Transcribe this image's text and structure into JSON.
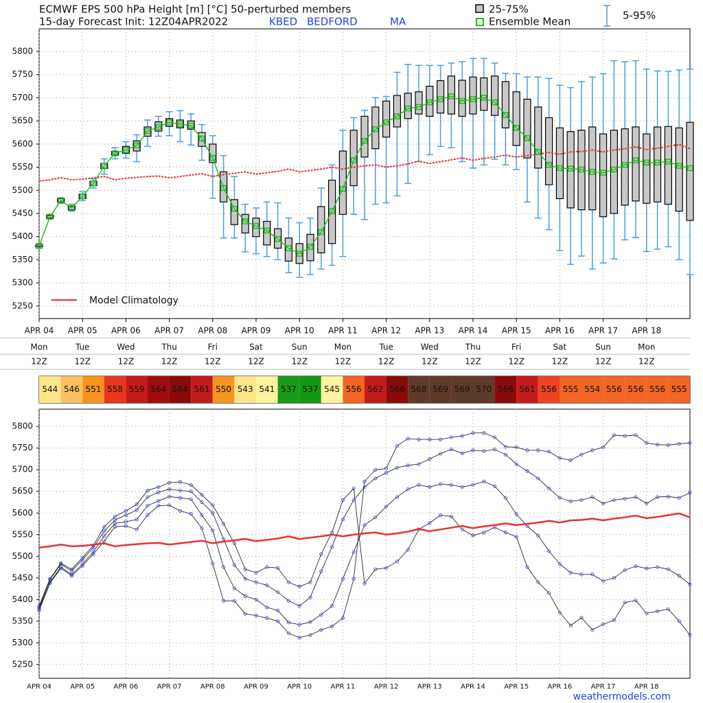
{
  "chart_data": [
    {
      "type": "box",
      "title": "ECMWF EPS 500 hPa Height [m] [°C]  50-perturbed members",
      "subtitle": "15-day Forecast Init: 12Z04APR2022",
      "station": "KBED",
      "city": "BEDFORD",
      "state": "MA",
      "categories": [
        "APR 04",
        null,
        null,
        null,
        "APR 05",
        null,
        null,
        null,
        "APR 06",
        null,
        null,
        null,
        "APR 07",
        null,
        null,
        null,
        "APR 08",
        null,
        null,
        null,
        "APR 09",
        null,
        null,
        null,
        "APR 10",
        null,
        null,
        null,
        "APR 11",
        null,
        null,
        null,
        "APR 12",
        null,
        null,
        null,
        "APR 13",
        null,
        null,
        null,
        "APR 14",
        null,
        null,
        null,
        "APR 15",
        null,
        null,
        null,
        "APR 16",
        null,
        null,
        null,
        "APR 17",
        null,
        null,
        null,
        "APR 18",
        null,
        null,
        null,
        null
      ],
      "weekdays": [
        "Mon",
        "Tue",
        "Wed",
        "Thu",
        "Fri",
        "Sat",
        "Sun",
        "Mon",
        "Tue",
        "Wed",
        "Thu",
        "Fri",
        "Sat",
        "Sun",
        "Mon"
      ],
      "hours": [
        "12Z",
        "12Z",
        "12Z",
        "12Z",
        "12Z",
        "12Z",
        "12Z",
        "12Z",
        "12Z",
        "12Z",
        "12Z",
        "12Z",
        "12Z",
        "12Z",
        "12Z"
      ],
      "ylim": [
        5223,
        5849
      ],
      "yticks": [
        5250,
        5300,
        5350,
        5400,
        5450,
        5500,
        5550,
        5600,
        5650,
        5700,
        5750,
        5800
      ],
      "grid": true,
      "box": {
        "name": "25-75%",
        "color": "#c8c8c8",
        "q1": [
          5378,
          5440,
          5475,
          5458,
          5482,
          5510,
          5547,
          5576,
          5580,
          5585,
          5617,
          5628,
          5638,
          5635,
          5632,
          5595,
          5560,
          5475,
          5426,
          5408,
          5400,
          5382,
          5375,
          5347,
          5342,
          5348,
          5365,
          5385,
          5448,
          5510,
          5572,
          5590,
          5615,
          5637,
          5655,
          5665,
          5660,
          5667,
          5665,
          5660,
          5665,
          5673,
          5662,
          5635,
          5597,
          5570,
          5548,
          5512,
          5482,
          5462,
          5458,
          5458,
          5443,
          5450,
          5468,
          5477,
          5472,
          5475,
          5470,
          5455,
          5435
        ],
        "q3": [
          5382,
          5446,
          5482,
          5466,
          5492,
          5520,
          5558,
          5584,
          5595,
          5607,
          5637,
          5648,
          5655,
          5652,
          5650,
          5625,
          5600,
          5540,
          5480,
          5448,
          5440,
          5433,
          5417,
          5397,
          5385,
          5405,
          5465,
          5522,
          5585,
          5630,
          5660,
          5680,
          5693,
          5705,
          5710,
          5713,
          5725,
          5737,
          5747,
          5738,
          5745,
          5743,
          5747,
          5735,
          5713,
          5697,
          5680,
          5657,
          5635,
          5627,
          5630,
          5637,
          5622,
          5630,
          5633,
          5637,
          5622,
          5637,
          5638,
          5635,
          5647
        ]
      },
      "whiskers": {
        "name": "5-95%",
        "color": "#4a9de0",
        "low": [
          5375,
          5438,
          5472,
          5455,
          5478,
          5505,
          5535,
          5568,
          5570,
          5562,
          5595,
          5617,
          5618,
          5605,
          5598,
          5565,
          5483,
          5397,
          5397,
          5367,
          5363,
          5357,
          5350,
          5322,
          5312,
          5318,
          5330,
          5338,
          5357,
          5448,
          5437,
          5470,
          5473,
          5488,
          5515,
          5562,
          5577,
          5595,
          5592,
          5562,
          5548,
          5555,
          5567,
          5555,
          5545,
          5475,
          5440,
          5415,
          5370,
          5340,
          5358,
          5330,
          5343,
          5352,
          5393,
          5398,
          5368,
          5373,
          5378,
          5350,
          5318
        ],
        "high": [
          5385,
          5448,
          5484,
          5470,
          5497,
          5525,
          5568,
          5592,
          5605,
          5620,
          5652,
          5660,
          5670,
          5672,
          5665,
          5642,
          5618,
          5575,
          5530,
          5470,
          5462,
          5475,
          5473,
          5440,
          5430,
          5440,
          5505,
          5555,
          5630,
          5657,
          5673,
          5700,
          5703,
          5755,
          5772,
          5770,
          5770,
          5770,
          5775,
          5778,
          5785,
          5785,
          5775,
          5753,
          5752,
          5745,
          5745,
          5742,
          5727,
          5722,
          5735,
          5745,
          5752,
          5780,
          5778,
          5780,
          5762,
          5758,
          5757,
          5760,
          5762
        ]
      },
      "series": [
        {
          "name": "Model Climatology",
          "color": "#e83030",
          "values": [
            5520,
            5523,
            5527,
            5523,
            5524,
            5527,
            5530,
            5523,
            5526,
            5528,
            5530,
            5531,
            5527,
            5530,
            5533,
            5536,
            5530,
            5534,
            5537,
            5540,
            5535,
            5538,
            5541,
            5546,
            5540,
            5543,
            5546,
            5550,
            5546,
            5550,
            5553,
            5555,
            5550,
            5553,
            5557,
            5563,
            5558,
            5562,
            5566,
            5570,
            5565,
            5569,
            5572,
            5576,
            5572,
            5575,
            5578,
            5582,
            5578,
            5583,
            5584,
            5587,
            5583,
            5587,
            5590,
            5594,
            5588,
            5591,
            5595,
            5599,
            5590
          ]
        },
        {
          "name": "Ensemble Mean",
          "color": "#22bb22",
          "values": [
            5380,
            5443,
            5478,
            5462,
            5487,
            5515,
            5553,
            5580,
            5587,
            5597,
            5628,
            5637,
            5647,
            5643,
            5640,
            5612,
            5570,
            5505,
            5460,
            5433,
            5423,
            5413,
            5395,
            5375,
            5363,
            5378,
            5410,
            5455,
            5503,
            5565,
            5607,
            5632,
            5647,
            5660,
            5677,
            5680,
            5690,
            5697,
            5703,
            5693,
            5697,
            5700,
            5690,
            5663,
            5635,
            5613,
            5583,
            5555,
            5548,
            5547,
            5545,
            5540,
            5538,
            5545,
            5555,
            5565,
            5560,
            5560,
            5562,
            5553,
            5548
          ]
        }
      ]
    },
    {
      "type": "strip",
      "values": [
        544,
        546,
        551,
        558,
        559,
        564,
        564,
        561,
        550,
        543,
        541,
        537,
        537,
        545,
        556,
        562,
        566,
        568,
        569,
        569,
        570,
        566,
        561,
        556,
        555,
        554,
        556,
        556,
        556,
        555
      ],
      "colors": [
        "#fde68a",
        "#fbc060",
        "#f7941d",
        "#e8361c",
        "#c41b1b",
        "#a00d0d",
        "#8b0a0a",
        "#c41b1b",
        "#f7941d",
        "#fde68a",
        "#fdf3a0",
        "#1a9a1a",
        "#119911",
        "#fdf3a0",
        "#f26522",
        "#c41b1b",
        "#8b0a0a",
        "#5e3a2a",
        "#5e3a2a",
        "#5e3a2a",
        "#5e3a2a",
        "#8b0a0a",
        "#c41b1b",
        "#ee4422",
        "#f26522",
        "#f26522",
        "#f26522",
        "#f26522",
        "#f26522",
        "#f26522"
      ]
    },
    {
      "type": "spaghetti",
      "categories": [
        "APR 04",
        null,
        null,
        null,
        "APR 05",
        null,
        null,
        null,
        "APR 06",
        null,
        null,
        null,
        "APR 07",
        null,
        null,
        null,
        "APR 08",
        null,
        null,
        null,
        "APR 09",
        null,
        null,
        null,
        "APR 10",
        null,
        null,
        null,
        "APR 11",
        null,
        null,
        null,
        "APR 12",
        null,
        null,
        null,
        "APR 13",
        null,
        null,
        null,
        "APR 14",
        null,
        null,
        null,
        "APR 15",
        null,
        null,
        null,
        "APR 16",
        null,
        null,
        null,
        "APR 17",
        null,
        null,
        null,
        "APR 18",
        null,
        null,
        null,
        null
      ],
      "ylim": [
        5218,
        5840
      ],
      "yticks": [
        5250,
        5300,
        5350,
        5400,
        5450,
        5500,
        5550,
        5600,
        5650,
        5700,
        5750,
        5800
      ],
      "grid": true,
      "marker_color": "#3344dd",
      "series": [
        {
          "color": "#111111",
          "values": [
            5375,
            5438,
            5472,
            5455,
            5478,
            5505,
            5535,
            5568,
            5570,
            5562,
            5595,
            5617,
            5618,
            5605,
            5598,
            5565,
            5483,
            5397,
            5397,
            5367,
            5363,
            5357,
            5350,
            5322,
            5312,
            5318,
            5330,
            5338,
            5357,
            5448,
            5673,
            5700,
            5703,
            5755,
            5772,
            5770,
            5770,
            5770,
            5775,
            5778,
            5785,
            5785,
            5775,
            5753,
            5752,
            5745,
            5745,
            5742,
            5727,
            5722,
            5735,
            5745,
            5752,
            5780,
            5778,
            5780,
            5762,
            5758,
            5757,
            5760,
            5762
          ]
        },
        {
          "color": "#111111",
          "values": [
            5385,
            5448,
            5484,
            5470,
            5497,
            5525,
            5568,
            5592,
            5605,
            5620,
            5652,
            5660,
            5670,
            5672,
            5665,
            5642,
            5618,
            5575,
            5530,
            5470,
            5462,
            5475,
            5473,
            5440,
            5430,
            5440,
            5505,
            5555,
            5630,
            5657,
            5437,
            5470,
            5473,
            5488,
            5515,
            5562,
            5577,
            5595,
            5592,
            5562,
            5548,
            5555,
            5567,
            5555,
            5545,
            5475,
            5440,
            5415,
            5370,
            5340,
            5358,
            5330,
            5343,
            5352,
            5393,
            5398,
            5368,
            5373,
            5378,
            5350,
            5318
          ]
        },
        {
          "color": "#111111",
          "values": [
            5378,
            5440,
            5475,
            5458,
            5482,
            5510,
            5547,
            5576,
            5580,
            5585,
            5617,
            5628,
            5638,
            5635,
            5632,
            5595,
            5560,
            5475,
            5426,
            5408,
            5400,
            5382,
            5375,
            5347,
            5342,
            5348,
            5365,
            5385,
            5448,
            5510,
            5572,
            5590,
            5615,
            5637,
            5655,
            5665,
            5660,
            5667,
            5665,
            5660,
            5665,
            5673,
            5662,
            5635,
            5597,
            5570,
            5548,
            5512,
            5482,
            5462,
            5458,
            5458,
            5443,
            5450,
            5468,
            5477,
            5472,
            5475,
            5470,
            5455,
            5435
          ]
        },
        {
          "color": "#111111",
          "values": [
            5382,
            5446,
            5482,
            5466,
            5492,
            5520,
            5558,
            5584,
            5595,
            5607,
            5637,
            5648,
            5655,
            5652,
            5650,
            5625,
            5600,
            5540,
            5480,
            5448,
            5440,
            5433,
            5417,
            5397,
            5385,
            5405,
            5465,
            5522,
            5585,
            5630,
            5660,
            5680,
            5693,
            5705,
            5710,
            5713,
            5725,
            5737,
            5747,
            5738,
            5745,
            5743,
            5747,
            5735,
            5713,
            5697,
            5680,
            5657,
            5635,
            5627,
            5630,
            5637,
            5622,
            5630,
            5633,
            5637,
            5622,
            5637,
            5638,
            5635,
            5647
          ]
        },
        {
          "color": "#e83030",
          "climatology": true,
          "values": [
            5520,
            5523,
            5527,
            5523,
            5524,
            5527,
            5530,
            5523,
            5526,
            5528,
            5530,
            5531,
            5527,
            5530,
            5533,
            5536,
            5530,
            5534,
            5537,
            5540,
            5535,
            5538,
            5541,
            5546,
            5540,
            5543,
            5546,
            5550,
            5546,
            5550,
            5553,
            5555,
            5550,
            5553,
            5557,
            5563,
            5558,
            5562,
            5566,
            5570,
            5565,
            5569,
            5572,
            5576,
            5572,
            5575,
            5578,
            5582,
            5578,
            5583,
            5584,
            5587,
            5583,
            5587,
            5590,
            5594,
            5588,
            5591,
            5595,
            5599,
            5590
          ]
        }
      ]
    }
  ],
  "credit": "weathermodels.com"
}
